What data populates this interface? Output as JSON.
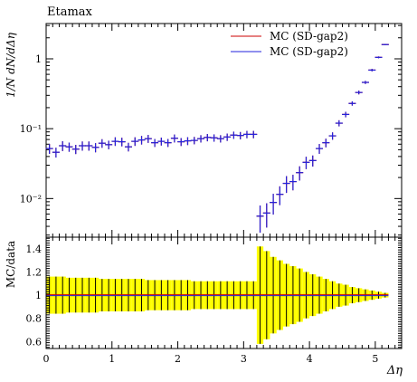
{
  "chart_data": [
    {
      "type": "scatter",
      "title": "Etamax",
      "xlabel": "Δη",
      "ylabel": "1/N dN/dΔη",
      "yscale": "log",
      "xlim": [
        0,
        5.4
      ],
      "ylim": [
        0.0028,
        3.2
      ],
      "grid": false,
      "legend_position": "top-right",
      "y_tick_labels": [
        "1",
        "10⁻¹",
        "10⁻²"
      ],
      "y_tick_values": [
        1,
        0.1,
        0.01
      ],
      "legend": [
        {
          "label": "MC (SD-gap2)",
          "color": "#cc0000"
        },
        {
          "label": "MC (SD-gap2)",
          "color": "#2222dd"
        }
      ],
      "x": [
        0.05,
        0.15,
        0.25,
        0.35,
        0.45,
        0.55,
        0.65,
        0.75,
        0.85,
        0.95,
        1.05,
        1.15,
        1.25,
        1.35,
        1.45,
        1.55,
        1.65,
        1.75,
        1.85,
        1.95,
        2.05,
        2.15,
        2.25,
        2.35,
        2.45,
        2.55,
        2.65,
        2.75,
        2.85,
        2.95,
        3.05,
        3.15,
        3.25,
        3.35,
        3.45,
        3.55,
        3.65,
        3.75,
        3.85,
        3.95,
        4.05,
        4.15,
        4.25,
        4.35,
        4.45,
        4.55,
        4.65,
        4.75,
        4.85,
        4.95,
        5.05,
        5.15
      ],
      "series": [
        {
          "name": "MC (SD-gap2)",
          "color": "#cc0000",
          "y": [
            0.052,
            0.046,
            0.057,
            0.055,
            0.051,
            0.057,
            0.057,
            0.054,
            0.062,
            0.059,
            0.066,
            0.065,
            0.055,
            0.066,
            0.069,
            0.072,
            0.063,
            0.066,
            0.063,
            0.073,
            0.065,
            0.067,
            0.068,
            0.072,
            0.075,
            0.074,
            0.072,
            0.076,
            0.081,
            0.08,
            0.083,
            0.083,
            0.0056,
            0.0062,
            0.0088,
            0.0115,
            0.0165,
            0.0175,
            0.0235,
            0.033,
            0.035,
            0.052,
            0.063,
            0.079,
            0.12,
            0.16,
            0.23,
            0.33,
            0.46,
            0.69,
            1.05,
            1.6
          ],
          "yerr_rel": [
            0.16,
            0.16,
            0.16,
            0.15,
            0.15,
            0.15,
            0.15,
            0.15,
            0.14,
            0.14,
            0.14,
            0.14,
            0.14,
            0.14,
            0.14,
            0.13,
            0.13,
            0.13,
            0.13,
            0.13,
            0.13,
            0.13,
            0.12,
            0.12,
            0.12,
            0.12,
            0.12,
            0.12,
            0.12,
            0.12,
            0.12,
            0.12,
            0.42,
            0.38,
            0.33,
            0.3,
            0.27,
            0.25,
            0.23,
            0.2,
            0.18,
            0.16,
            0.14,
            0.12,
            0.1,
            0.09,
            0.07,
            0.06,
            0.05,
            0.04,
            0.03,
            0.02
          ]
        },
        {
          "name": "MC (SD-gap2)",
          "color": "#2222dd",
          "y": [
            0.052,
            0.046,
            0.057,
            0.055,
            0.051,
            0.057,
            0.057,
            0.054,
            0.062,
            0.059,
            0.066,
            0.065,
            0.055,
            0.066,
            0.069,
            0.072,
            0.063,
            0.066,
            0.063,
            0.073,
            0.065,
            0.067,
            0.068,
            0.072,
            0.075,
            0.074,
            0.072,
            0.076,
            0.081,
            0.08,
            0.083,
            0.083,
            0.0056,
            0.0062,
            0.0088,
            0.0115,
            0.0165,
            0.0175,
            0.0235,
            0.033,
            0.035,
            0.052,
            0.063,
            0.079,
            0.12,
            0.16,
            0.23,
            0.33,
            0.46,
            0.69,
            1.05,
            1.6
          ],
          "yerr_rel": [
            0.16,
            0.16,
            0.16,
            0.15,
            0.15,
            0.15,
            0.15,
            0.15,
            0.14,
            0.14,
            0.14,
            0.14,
            0.14,
            0.14,
            0.14,
            0.13,
            0.13,
            0.13,
            0.13,
            0.13,
            0.13,
            0.13,
            0.12,
            0.12,
            0.12,
            0.12,
            0.12,
            0.12,
            0.12,
            0.12,
            0.12,
            0.12,
            0.42,
            0.38,
            0.33,
            0.3,
            0.27,
            0.25,
            0.23,
            0.2,
            0.18,
            0.16,
            0.14,
            0.12,
            0.1,
            0.09,
            0.07,
            0.06,
            0.05,
            0.04,
            0.03,
            0.02
          ]
        }
      ]
    },
    {
      "type": "scatter",
      "ylabel": "MC/data",
      "xlabel": "Δη",
      "xlim": [
        0,
        5.4
      ],
      "ylim": [
        0.54,
        1.5
      ],
      "grid": false,
      "x_tick_labels": [
        "0",
        "1",
        "2",
        "3",
        "4",
        "5"
      ],
      "x_tick_values": [
        0,
        1,
        2,
        3,
        4,
        5
      ],
      "y_tick_labels": [
        "0.6",
        "0.8",
        "1",
        "1.2",
        "1.4"
      ],
      "y_tick_values": [
        0.6,
        0.8,
        1.0,
        1.2,
        1.4
      ],
      "band_color": "#ffff00",
      "band_label": "data uncertainty",
      "series": [
        {
          "name": "MC (SD-gap2)",
          "color": "#cc0000",
          "ratio": 1.0
        },
        {
          "name": "MC (SD-gap2)",
          "color": "#2222dd",
          "ratio": 1.0
        }
      ]
    }
  ]
}
